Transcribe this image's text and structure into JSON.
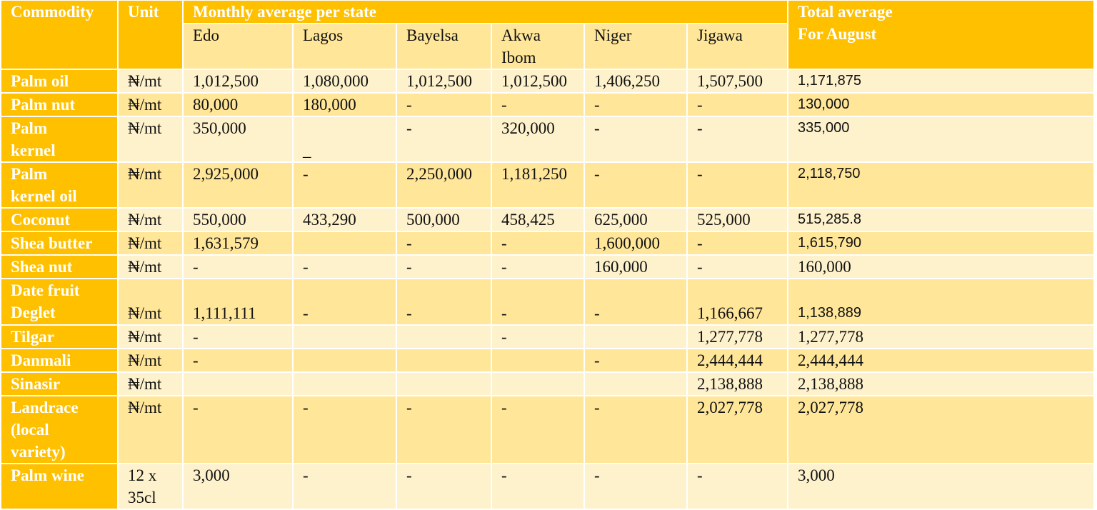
{
  "header": {
    "commodity": "Commodity",
    "unit": "Unit",
    "monthly": "Monthly average  per state",
    "total": "Total average\n For August",
    "states": [
      "Edo",
      "Lagos",
      "Bayelsa",
      "Akwa\nIbom",
      "Niger",
      "Jigawa"
    ]
  },
  "colors": {
    "header": "#FFC000",
    "row_light": "#FEF2CC",
    "row_dark": "#FFE699"
  },
  "rows": [
    {
      "commodity": "Palm oil",
      "unit": "₦/mt",
      "values": [
        "1,012,500",
        "1,080,000",
        "1,012,500",
        "1,012,500",
        "1,406,250",
        "1,507,500"
      ],
      "total": "1,171,875"
    },
    {
      "commodity": "Palm nut",
      "unit": "₦/mt",
      "values": [
        "80,000",
        "180,000",
        "-",
        "-",
        "-",
        "-"
      ],
      "total": "130,000"
    },
    {
      "commodity": "Palm\nkernel",
      "unit": "₦/mt",
      "values": [
        "350,000",
        "\n_",
        "-",
        "320,000",
        "-",
        "-"
      ],
      "total": "335,000"
    },
    {
      "commodity": "Palm\nkernel oil",
      "unit": "₦/mt",
      "values": [
        "2,925,000",
        "-",
        "2,250,000",
        "1,181,250",
        "-",
        "-"
      ],
      "total": "2,118,750"
    },
    {
      "commodity": "Coconut",
      "unit": "₦/mt",
      "values": [
        "550,000",
        "433,290",
        "500,000",
        "458,425",
        "625,000",
        "525,000"
      ],
      "total": "515,285.8"
    },
    {
      "commodity": "Shea butter",
      "unit": "₦/mt",
      "values": [
        "1,631,579",
        "",
        "-",
        "-",
        "1,600,000",
        "-"
      ],
      "total": "1,615,790"
    },
    {
      "commodity": "Shea nut",
      "unit": "₦/mt",
      "values": [
        "-",
        "-",
        "-",
        "-",
        "160,000",
        "-"
      ],
      "total": "160,000"
    },
    {
      "commodity": "Date fruit\nDeglet",
      "unit": "₦/mt",
      "values": [
        "1,111,111",
        "-",
        "-",
        "-",
        "-",
        "1,166,667"
      ],
      "total": "1,138,889"
    },
    {
      "commodity": "Tilgar",
      "unit": "₦/mt",
      "values": [
        "-",
        "",
        "",
        "-",
        "",
        "1,277,778"
      ],
      "total": "1,277,778"
    },
    {
      "commodity": "Danmali",
      "unit": "₦/mt",
      "values": [
        "-",
        "",
        "",
        "",
        "-",
        "2,444,444"
      ],
      "total": "2,444,444"
    },
    {
      "commodity": "Sinasir",
      "unit": "₦/mt",
      "values": [
        "",
        "",
        "",
        "",
        "",
        "2,138,888"
      ],
      "total": "2,138,888"
    },
    {
      "commodity": "Landrace\n(local\nvariety)",
      "unit": "₦/mt",
      "values": [
        "-",
        "-",
        "-",
        "-",
        "-",
        "2,027,778"
      ],
      "total": "2,027,778"
    },
    {
      "commodity": "Palm wine",
      "unit": "12 x\n35cl",
      "values": [
        "3,000",
        "-",
        "-",
        "-",
        "-",
        "-"
      ],
      "total": "3,000"
    }
  ]
}
